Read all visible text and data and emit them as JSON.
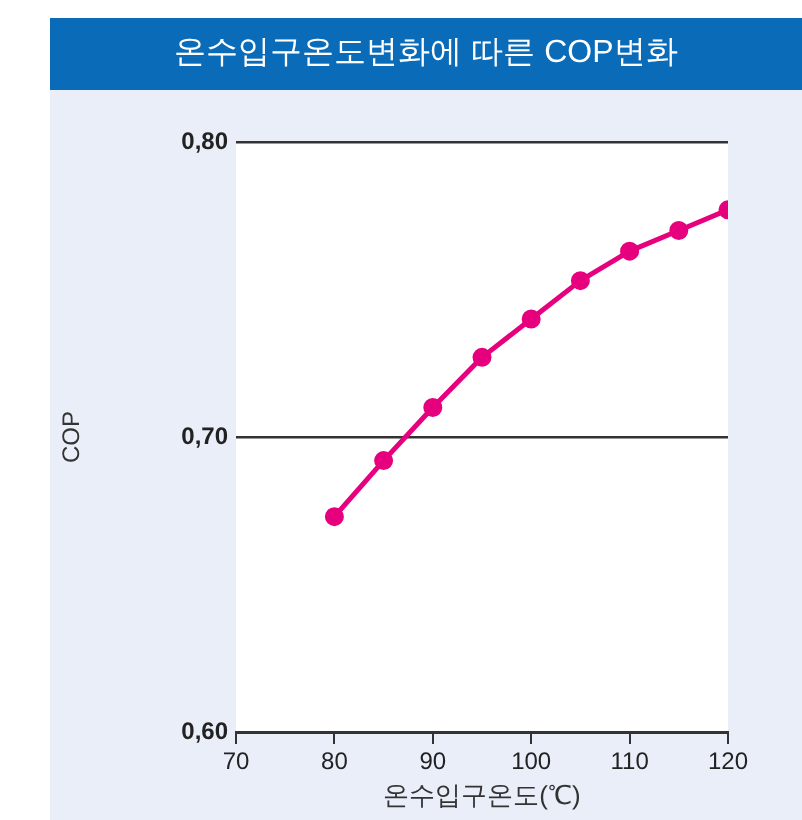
{
  "chart_data": {
    "type": "line",
    "title": "온수입구온도변화에 따른 COP변화",
    "xlabel": "온수입구온도(℃)",
    "ylabel": "COP",
    "x": [
      80,
      85,
      90,
      95,
      100,
      105,
      110,
      115,
      120
    ],
    "series": [
      {
        "color": "#e6007e",
        "values": [
          0.673,
          0.692,
          0.71,
          0.727,
          0.74,
          0.753,
          0.763,
          0.77,
          0.777
        ]
      }
    ],
    "xlim": [
      70,
      120
    ],
    "xticks": [
      70,
      80,
      90,
      100,
      110,
      120
    ],
    "ylim": [
      0.6,
      0.8
    ],
    "yticks": [
      {
        "value": 0.6,
        "label": "0,60"
      },
      {
        "value": 0.7,
        "label": "0,70"
      },
      {
        "value": 0.8,
        "label": "0,80"
      }
    ],
    "grid": "y",
    "marker": "circle",
    "line_style": "solid",
    "legend": false
  }
}
